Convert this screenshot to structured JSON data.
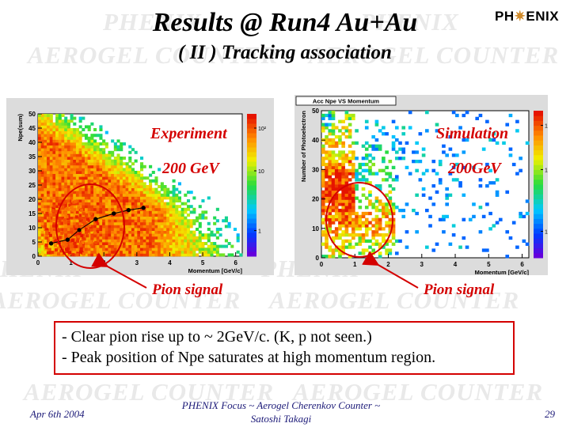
{
  "slide": {
    "title": "Results @ Run4 Au+Au",
    "subtitle": "( II ) Tracking association",
    "logo": {
      "left": "PH",
      "right": "ENIX",
      "star_icon": "sunburst-star"
    },
    "watermark": {
      "phenix": "PHENIX",
      "aerogel_counter": "AEROGEL COUNTER"
    }
  },
  "experiment_panel": {
    "label_top": "Experiment",
    "label_energy": "200 GeV",
    "pion_label": "Pion signal",
    "chart_data": {
      "type": "heatmap",
      "title": "",
      "xlabel": "Momentum [GeV/c]",
      "ylabel": "Npe(sum)",
      "xlim": [
        0,
        6.2
      ],
      "ylim": [
        0,
        50
      ],
      "x_ticks": [
        "0",
        "1",
        "2",
        "3",
        "4",
        "5",
        "6"
      ],
      "y_ticks": [
        "0",
        "5",
        "10",
        "15",
        "20",
        "25",
        "30",
        "35",
        "40",
        "45",
        "50"
      ],
      "color_scale": "log",
      "colorbar_ticks": [
        "1",
        "10",
        "10²"
      ],
      "overlay_series": {
        "name": "",
        "x": [
          0.4,
          0.9,
          1.25,
          1.75,
          2.3,
          2.75,
          3.2
        ],
        "y": [
          4.5,
          5.8,
          9.2,
          13.0,
          15.0,
          16.2,
          17.0
        ]
      }
    }
  },
  "simulation_panel": {
    "label_top": "Simulation",
    "label_energy": "200GeV",
    "pion_label": "Pion signal",
    "chart_data": {
      "type": "heatmap",
      "title": "Acc Npe VS Momentum",
      "xlabel": "Momentum [GeV/c]",
      "ylabel": "Number of Photoelectron",
      "xlim": [
        0,
        6.2
      ],
      "ylim": [
        0,
        50
      ],
      "x_ticks": [
        "0",
        "1",
        "2",
        "3",
        "4",
        "5",
        "6"
      ],
      "y_ticks": [
        "0",
        "10",
        "20",
        "30",
        "40",
        "50"
      ],
      "color_scale": "log",
      "colorbar_ticks": [
        "1",
        "10",
        "10²"
      ]
    }
  },
  "notes": [
    "- Clear pion rise up to ~ 2GeV/c. (K, p not seen.)",
    "- Peak position of Npe saturates at high momentum region."
  ],
  "footer": {
    "date": "Apr 6th 2004",
    "center_line1": "PHENIX Focus  ~ Aerogel Cherenkov Counter ~",
    "center_line2": "Satoshi Takagi",
    "page": "29"
  },
  "colors": {
    "red_accent": "#d40000",
    "footer_blue": "#1c1a78",
    "watermark": "#e9e9e9"
  }
}
